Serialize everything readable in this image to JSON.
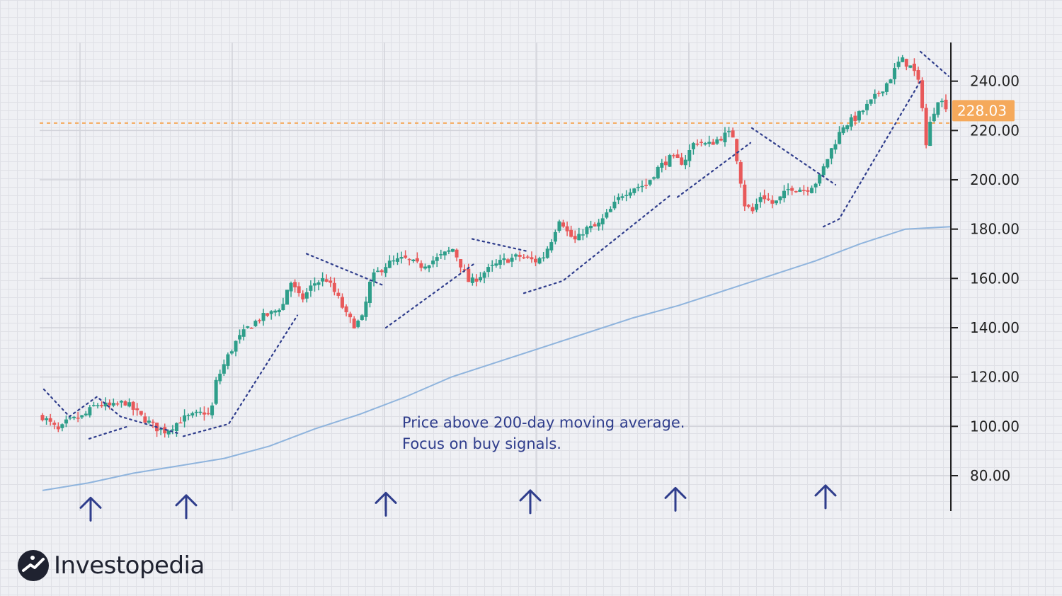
{
  "brand": {
    "name": "Investopedia"
  },
  "annotation": {
    "line1": "Price above 200-day moving average.",
    "line2": "Focus on buy signals."
  },
  "current_price": {
    "label": "228.03",
    "value": 228.03,
    "color": "#f5a95b"
  },
  "resistance_level": 223,
  "colors": {
    "up": "#2e9e8a",
    "down": "#e8595a",
    "moving_average": "#8fb4dd",
    "trendline": "#2f3d8c",
    "signal_arrow": "#2f3d8c",
    "axis": "#222222"
  },
  "chart_data": {
    "type": "candlestick",
    "title": "",
    "xlabel": "",
    "ylabel": "",
    "ylim": [
      70,
      260
    ],
    "y_ticks": [
      "80.00",
      "100.00",
      "120.00",
      "140.00",
      "160.00",
      "180.00",
      "200.00",
      "220.00",
      "240.00"
    ],
    "y_tick_values": [
      80,
      100,
      120,
      140,
      160,
      180,
      200,
      220,
      240
    ],
    "grid": true,
    "price_path_closes": [
      [
        0,
        104
      ],
      [
        0.02,
        98
      ],
      [
        0.03,
        102
      ],
      [
        0.05,
        104
      ],
      [
        0.065,
        109
      ],
      [
        0.085,
        108
      ],
      [
        0.1,
        110
      ],
      [
        0.12,
        104
      ],
      [
        0.14,
        99
      ],
      [
        0.15,
        98
      ],
      [
        0.17,
        103
      ],
      [
        0.2,
        106
      ],
      [
        0.2,
        105
      ],
      [
        0.205,
        104
      ],
      [
        0.21,
        117
      ],
      [
        0.225,
        128
      ],
      [
        0.235,
        134
      ],
      [
        0.25,
        140
      ],
      [
        0.265,
        144
      ],
      [
        0.28,
        146
      ],
      [
        0.295,
        150
      ],
      [
        0.3,
        160
      ],
      [
        0.315,
        151
      ],
      [
        0.33,
        158
      ],
      [
        0.345,
        160
      ],
      [
        0.36,
        152
      ],
      [
        0.37,
        145
      ],
      [
        0.38,
        141
      ],
      [
        0.39,
        144
      ],
      [
        0.395,
        152
      ],
      [
        0.4,
        160
      ],
      [
        0.42,
        166
      ],
      [
        0.44,
        168
      ],
      [
        0.46,
        165
      ],
      [
        0.48,
        168
      ],
      [
        0.5,
        172
      ],
      [
        0.51,
        165
      ],
      [
        0.52,
        158
      ],
      [
        0.54,
        163
      ],
      [
        0.56,
        167
      ],
      [
        0.58,
        169
      ],
      [
        0.6,
        167
      ],
      [
        0.61,
        169
      ],
      [
        0.62,
        176
      ],
      [
        0.63,
        185
      ],
      [
        0.64,
        178
      ],
      [
        0.65,
        175
      ],
      [
        0.66,
        180
      ],
      [
        0.675,
        181
      ],
      [
        0.69,
        187
      ],
      [
        0.705,
        194
      ],
      [
        0.72,
        197
      ],
      [
        0.735,
        198
      ],
      [
        0.75,
        205
      ],
      [
        0.765,
        209
      ],
      [
        0.78,
        207
      ],
      [
        0.795,
        216
      ],
      [
        0.81,
        214
      ],
      [
        0.83,
        218
      ],
      [
        0.84,
        219
      ],
      [
        0.85,
        200
      ],
      [
        0.855,
        190
      ],
      [
        0.865,
        187
      ],
      [
        0.875,
        194
      ],
      [
        0.89,
        190
      ],
      [
        0.9,
        193
      ],
      [
        0.91,
        197
      ],
      [
        0.93,
        196
      ],
      [
        0.945,
        200
      ],
      [
        0.96,
        212
      ],
      [
        0.975,
        222
      ],
      [
        0.99,
        225
      ],
      [
        1.01,
        232
      ],
      [
        1.03,
        240
      ],
      [
        1.045,
        249
      ],
      [
        1.06,
        245
      ],
      [
        1.07,
        236
      ],
      [
        1.075,
        212
      ],
      [
        1.08,
        222
      ],
      [
        1.09,
        233
      ],
      [
        1.1,
        230
      ]
    ],
    "moving_average_200": [
      [
        0,
        74
      ],
      [
        0.05,
        77
      ],
      [
        0.1,
        81
      ],
      [
        0.15,
        84
      ],
      [
        0.2,
        87
      ],
      [
        0.25,
        92
      ],
      [
        0.3,
        99
      ],
      [
        0.35,
        105
      ],
      [
        0.4,
        112
      ],
      [
        0.45,
        120
      ],
      [
        0.5,
        126
      ],
      [
        0.55,
        132
      ],
      [
        0.6,
        138
      ],
      [
        0.65,
        144
      ],
      [
        0.7,
        149
      ],
      [
        0.75,
        155
      ],
      [
        0.8,
        161
      ],
      [
        0.85,
        167
      ],
      [
        0.9,
        174
      ],
      [
        0.95,
        180
      ],
      [
        1.0,
        181
      ]
    ],
    "trendlines": [
      {
        "role": "resistance",
        "points": [
          [
            62,
            115
          ],
          [
            98,
            104
          ],
          [
            137,
            112
          ],
          [
            170,
            104
          ],
          [
            254,
            97
          ]
        ]
      },
      {
        "role": "support",
        "points": [
          [
            126,
            95
          ],
          [
            181,
            100
          ]
        ]
      },
      {
        "role": "support",
        "points": [
          [
            259,
            96
          ],
          [
            323,
            101
          ],
          [
            420,
            145
          ]
        ]
      },
      {
        "role": "resistance",
        "points": [
          [
            433,
            170
          ],
          [
            543,
            157
          ]
        ]
      },
      {
        "role": "support",
        "points": [
          [
            545,
            140
          ],
          [
            670,
            166
          ]
        ]
      },
      {
        "role": "resistance",
        "points": [
          [
            667,
            176
          ],
          [
            745,
            171
          ]
        ]
      },
      {
        "role": "support",
        "points": [
          [
            740,
            154
          ],
          [
            795,
            159
          ],
          [
            948,
            194
          ]
        ]
      },
      {
        "role": "support",
        "points": [
          [
            957,
            193
          ],
          [
            1060,
            215
          ]
        ]
      },
      {
        "role": "resistance",
        "points": [
          [
            1062,
            221
          ],
          [
            1180,
            198
          ]
        ]
      },
      {
        "role": "support",
        "points": [
          [
            1163,
            181
          ],
          [
            1185,
            184
          ],
          [
            1300,
            240
          ]
        ]
      },
      {
        "role": "resistance",
        "points": [
          [
            1300,
            252
          ],
          [
            1340,
            242
          ]
        ]
      }
    ],
    "buy_signal_arrows": [
      [
        128,
        71
      ],
      [
        263,
        72
      ],
      [
        545,
        73
      ],
      [
        749,
        74
      ],
      [
        954,
        75
      ],
      [
        1166,
        76
      ]
    ]
  }
}
